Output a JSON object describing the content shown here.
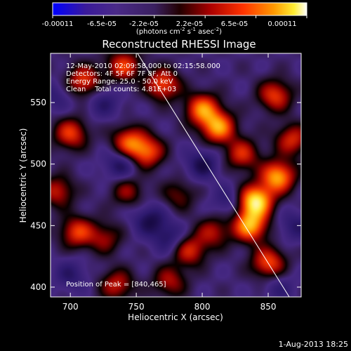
{
  "chart_data": {
    "type": "heatmap",
    "title": "Reconstructed RHESSI Image",
    "xlabel": "Heliocentric X (arcsec)",
    "ylabel": "Heliocentric Y (arcsec)",
    "xlim": [
      685,
      875
    ],
    "ylim": [
      392,
      590
    ],
    "x_ticks": [
      700,
      750,
      800,
      850
    ],
    "y_ticks": [
      400,
      450,
      500,
      550
    ],
    "colorbar": {
      "colormap": "black-purple-red-orange-yellow-white",
      "range": [
        -0.00011,
        0.00011
      ],
      "tick_labels": [
        "-0.00011",
        "-6.5e-05",
        "-2.2e-05",
        "2.2e-05",
        "6.5e-05",
        "0.00011"
      ],
      "units": "(photons cm<sup>-2</sup> s<sup>-1</sup> asec<sup>-2</sup>)"
    },
    "annotations": [
      "12-May-2010 02:09:58.000 to 02:15:58.000",
      "Detectors: 4F 5F 6F 7F 8F, Att 0",
      "Energy Range: 25.0 - 50.0 keV",
      "Clean    Total counts: 4.81E+03"
    ],
    "peak_label": "Position of Peak = [840,465]",
    "peak": [
      840,
      465
    ],
    "limb_line": [
      [
        748,
        595
      ],
      [
        866,
        392
      ]
    ],
    "sources": [
      {
        "x": 840,
        "y": 470,
        "amp": 1.0
      },
      {
        "x": 836,
        "y": 450,
        "amp": 0.8
      },
      {
        "x": 857,
        "y": 490,
        "amp": 0.8
      },
      {
        "x": 812,
        "y": 530,
        "amp": 0.75
      },
      {
        "x": 800,
        "y": 545,
        "amp": 0.7
      },
      {
        "x": 770,
        "y": 565,
        "amp": 0.6
      },
      {
        "x": 740,
        "y": 580,
        "amp": 0.55
      },
      {
        "x": 710,
        "y": 568,
        "amp": 0.55
      },
      {
        "x": 855,
        "y": 556,
        "amp": 0.55
      },
      {
        "x": 830,
        "y": 508,
        "amp": 0.5
      },
      {
        "x": 758,
        "y": 510,
        "amp": 0.6
      },
      {
        "x": 744,
        "y": 518,
        "amp": 0.6
      },
      {
        "x": 700,
        "y": 525,
        "amp": 0.55
      },
      {
        "x": 690,
        "y": 478,
        "amp": 0.45
      },
      {
        "x": 705,
        "y": 445,
        "amp": 0.55
      },
      {
        "x": 743,
        "y": 478,
        "amp": 0.35
      },
      {
        "x": 782,
        "y": 475,
        "amp": 0.3
      },
      {
        "x": 790,
        "y": 430,
        "amp": 0.5
      },
      {
        "x": 808,
        "y": 445,
        "amp": 0.4
      },
      {
        "x": 850,
        "y": 420,
        "amp": 0.6
      },
      {
        "x": 775,
        "y": 405,
        "amp": 0.4
      },
      {
        "x": 735,
        "y": 402,
        "amp": 0.45
      },
      {
        "x": 868,
        "y": 520,
        "amp": 0.5
      },
      {
        "x": 726,
        "y": 440,
        "amp": 0.35
      },
      {
        "x": 738,
        "y": 500,
        "amp": -0.35
      },
      {
        "x": 800,
        "y": 500,
        "amp": -0.35
      },
      {
        "x": 760,
        "y": 455,
        "amp": -0.35
      },
      {
        "x": 775,
        "y": 440,
        "amp": -0.3
      },
      {
        "x": 700,
        "y": 410,
        "amp": -0.25
      },
      {
        "x": 820,
        "y": 470,
        "amp": -0.25
      },
      {
        "x": 725,
        "y": 550,
        "amp": -0.25
      },
      {
        "x": 688,
        "y": 555,
        "amp": -0.2
      },
      {
        "x": 870,
        "y": 450,
        "amp": -0.25
      },
      {
        "x": 858,
        "y": 400,
        "amp": -0.2
      }
    ]
  },
  "footer": {
    "timestamp": "1-Aug-2013 18:25"
  },
  "colors": {
    "background": "#000000",
    "text": "#ffffff",
    "limb": "#ffffff"
  }
}
